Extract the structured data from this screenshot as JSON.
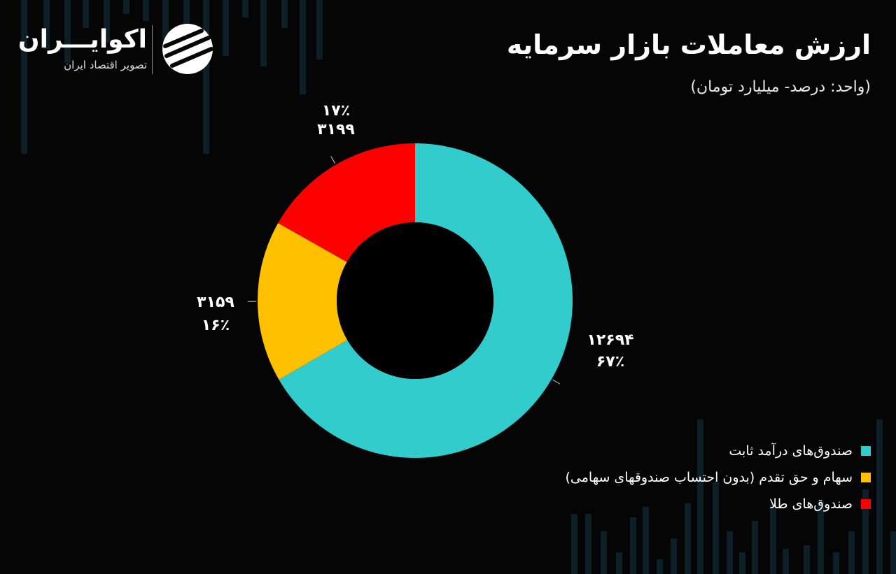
{
  "header": {
    "title": "ارزش معاملات بازار سرمایه",
    "subtitle": "(واحد: درصد- میلیارد تومان)"
  },
  "logo": {
    "name": "اکوایـــران",
    "tagline": "تصویر اقتصاد ایران"
  },
  "chart_data": {
    "type": "pie",
    "donut": true,
    "title": "ارزش معاملات بازار سرمایه",
    "subtitle": "(واحد: درصد- میلیارد تومان)",
    "slices": [
      {
        "label": "صندوق‌های درآمد ثابت",
        "value": 12694,
        "value_text": "۱۲۶۹۴",
        "percent_text": "۶۷٪",
        "color": "#33cccc"
      },
      {
        "label": "سهام و حق تقدم (بدون احتساب صندوقهای سهامی)",
        "value": 3159,
        "value_text": "۳۱۵۹",
        "percent_text": "۱۶٪",
        "color": "#ffc000"
      },
      {
        "label": "صندوق‌های طلا",
        "value": 3199,
        "value_text": "۳۱۹۹",
        "percent_text": "۱۷٪",
        "color": "#ff0000"
      }
    ],
    "legend_position": "bottom-right"
  }
}
